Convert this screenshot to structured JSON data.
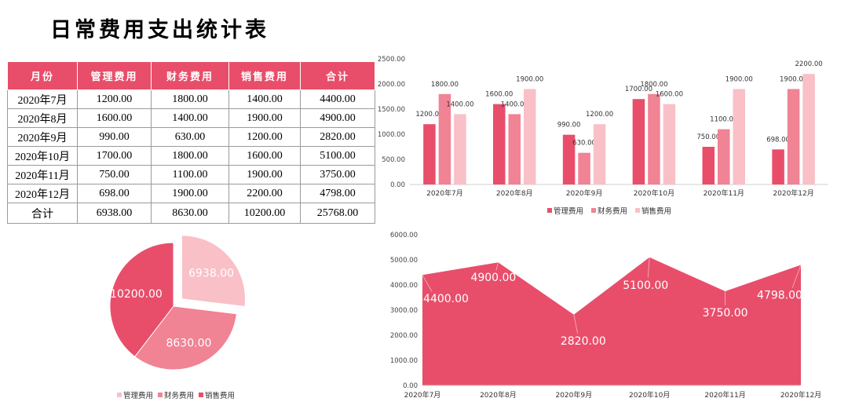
{
  "title": "日常费用支出统计表",
  "table": {
    "headers": [
      "月份",
      "管理费用",
      "财务费用",
      "销售费用",
      "合计"
    ],
    "rows": [
      [
        "2020年7月",
        "1200.00",
        "1800.00",
        "1400.00",
        "4400.00"
      ],
      [
        "2020年8月",
        "1600.00",
        "1400.00",
        "1900.00",
        "4900.00"
      ],
      [
        "2020年9月",
        "990.00",
        "630.00",
        "1200.00",
        "2820.00"
      ],
      [
        "2020年10月",
        "1700.00",
        "1800.00",
        "1600.00",
        "5100.00"
      ],
      [
        "2020年11月",
        "750.00",
        "1100.00",
        "1900.00",
        "3750.00"
      ],
      [
        "2020年12月",
        "698.00",
        "1900.00",
        "2200.00",
        "4798.00"
      ]
    ],
    "total_row": [
      "合计",
      "6938.00",
      "8630.00",
      "10200.00",
      "25768.00"
    ]
  },
  "colors": {
    "header_bg": "#e84e6a",
    "mgmt": "#e84e6a",
    "fin": "#f08394",
    "sales": "#f9c0c8"
  },
  "chart_data": [
    {
      "type": "bar",
      "categories": [
        "2020年7月",
        "2020年8月",
        "2020年9月",
        "2020年10月",
        "2020年11月",
        "2020年12月"
      ],
      "series": [
        {
          "name": "管理费用",
          "values": [
            1200,
            1600,
            990,
            1700,
            750,
            698
          ],
          "color": "#e84e6a"
        },
        {
          "name": "财务费用",
          "values": [
            1800,
            1400,
            630,
            1800,
            1100,
            1900
          ],
          "color": "#f08394"
        },
        {
          "name": "销售费用",
          "values": [
            1400,
            1900,
            1200,
            1600,
            1900,
            2200
          ],
          "color": "#f9c0c8"
        }
      ],
      "ylim": [
        0,
        2500
      ],
      "yticks": [
        "0.00",
        "500.00",
        "1000.00",
        "1500.00",
        "2000.00",
        "2500.00"
      ],
      "legend": "bottom",
      "grid": false
    },
    {
      "type": "pie",
      "labels": [
        "管理费用",
        "财务费用",
        "销售费用"
      ],
      "values": [
        6938,
        8630,
        10200
      ],
      "value_labels": [
        "6938.00",
        "8630.00",
        "10200.00"
      ],
      "colors": [
        "#f9c0c8",
        "#f08394",
        "#e84e6a"
      ],
      "exploded": "管理费用",
      "legend": "bottom"
    },
    {
      "type": "area",
      "categories": [
        "2020年7月",
        "2020年8月",
        "2020年9月",
        "2020年10月",
        "2020年11月",
        "2020年12月"
      ],
      "values": [
        4400,
        4900,
        2820,
        5100,
        3750,
        4798
      ],
      "value_labels": [
        "4400.00",
        "4900.00",
        "2820.00",
        "5100.00",
        "3750.00",
        "4798.00"
      ],
      "color": "#e84e6a",
      "ylim": [
        0,
        6000
      ],
      "yticks": [
        "0.00",
        "1000.00",
        "2000.00",
        "3000.00",
        "4000.00",
        "5000.00",
        "6000.00"
      ],
      "grid": false
    }
  ]
}
